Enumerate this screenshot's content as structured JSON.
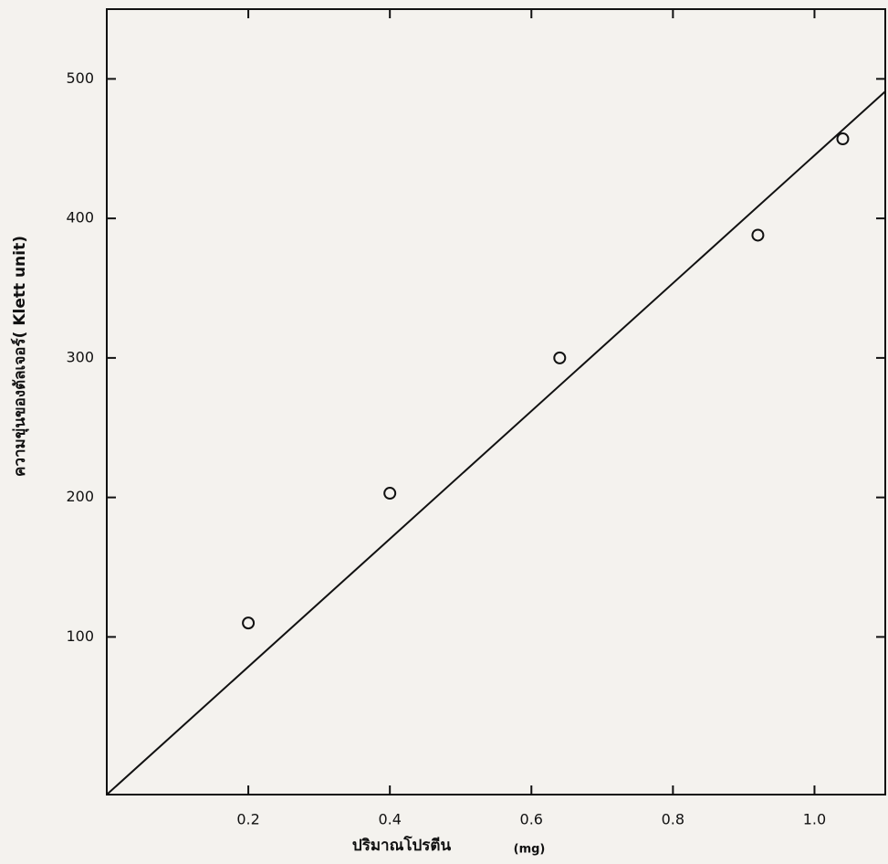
{
  "chart_data": {
    "type": "scatter",
    "x_label": "ปริมาณโปรตีน",
    "x_unit": "(mg)",
    "y_label": "ความขุ่นของตัลเจอร์( Klett unit)",
    "x": [
      0.2,
      0.4,
      0.64,
      0.92,
      1.04
    ],
    "values": [
      110,
      203,
      300,
      388,
      457
    ],
    "color": "#111111",
    "fit_line": {
      "x": [
        0,
        1.1
      ],
      "y": [
        -13,
        491
      ]
    },
    "xlim": [
      0,
      1.1
    ],
    "ylim": [
      -13,
      550
    ],
    "xticks": [
      0.2,
      0.4,
      0.6,
      0.8,
      {
        "value": 1.0,
        "label": "1.0"
      }
    ],
    "yticks": [
      100,
      200,
      300,
      400,
      500
    ],
    "grid": false
  }
}
